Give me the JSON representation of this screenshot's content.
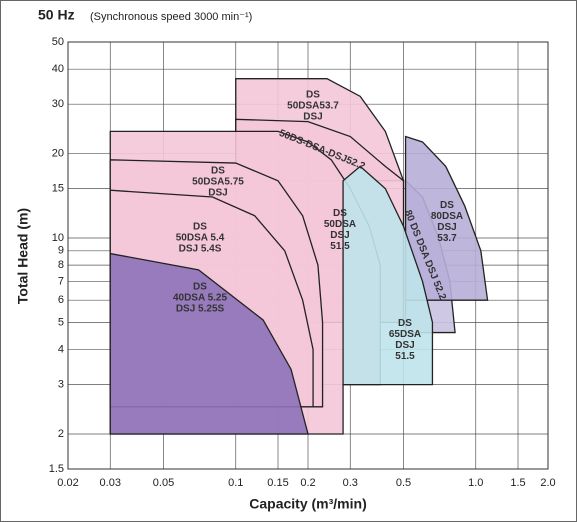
{
  "chart_data": {
    "type": "region-map",
    "title": "50 Hz",
    "subtitle": "(Synchronous speed  3000 min⁻¹)",
    "xlabel": "Capacity (m³/min)",
    "ylabel": "Total Head (m)",
    "xscale": "log",
    "yscale": "log",
    "grid": true,
    "xlim": [
      0.02,
      2.0
    ],
    "xticks": [
      0.02,
      0.03,
      0.05,
      0.1,
      0.15,
      0.2,
      0.3,
      0.5,
      {
        "value": 1.0,
        "label": "1.0"
      },
      1.5,
      {
        "value": 2.0,
        "label": "2.0"
      }
    ],
    "ylim": [
      1.5,
      50
    ],
    "yticks": [
      1.5,
      2,
      3,
      4,
      5,
      6,
      7,
      8,
      9,
      10,
      15,
      20,
      30,
      40,
      50
    ],
    "series": [
      {
        "name": [
          "DS",
          "50DSA53.7",
          "DSJ"
        ],
        "color": "#f4c6d8",
        "x": [
          0.1,
          0.1,
          0.24,
          0.33,
          0.42,
          0.5
        ],
        "values": [
          16,
          37,
          37,
          32,
          24,
          16
        ]
      },
      {
        "name": [
          "50DS-DSA-DSJ52.2"
        ],
        "color": "#f4c6d8",
        "x": [
          0.1,
          0.1,
          0.2,
          0.3,
          0.42,
          0.5,
          0.5
        ],
        "values": [
          5,
          26.5,
          26,
          23,
          18,
          16,
          5
        ]
      },
      {
        "name": [
          "80 DS DSA DSJ 52.2"
        ],
        "color": "#c9c2e2",
        "x": [
          0.51,
          0.51,
          0.6,
          0.7,
          0.78,
          0.82
        ],
        "values": [
          4.6,
          16,
          14,
          10,
          7,
          4.6
        ]
      },
      {
        "name": [
          "DS",
          "80DSA",
          "DSJ",
          "53.7"
        ],
        "color": "#b7aed7",
        "x": [
          0.51,
          0.51,
          0.6,
          0.75,
          0.9,
          1.05,
          1.12
        ],
        "values": [
          6,
          23,
          22,
          18,
          13,
          9,
          6
        ]
      },
      {
        "name": [
          "DS",
          "50DSA",
          "DSJ",
          "51.5"
        ],
        "color": "#f4c6d8",
        "x": [
          0.03,
          0.03,
          0.15,
          0.2,
          0.25,
          0.3,
          0.36,
          0.4,
          0.4,
          0.28,
          0.28
        ],
        "values": [
          2,
          24,
          24,
          22,
          19,
          15,
          11,
          8,
          3,
          3,
          2
        ]
      },
      {
        "name": [
          "DS",
          "65DSA",
          "DSJ",
          "51.5"
        ],
        "color": "#bfe3ea",
        "x": [
          0.28,
          0.28,
          0.33,
          0.42,
          0.5,
          0.6,
          0.66,
          0.66
        ],
        "values": [
          3,
          16,
          18,
          15,
          11,
          7,
          5,
          3
        ]
      },
      {
        "name": [
          "DS",
          "50DSA5.75",
          "DSJ"
        ],
        "color": "#f4c6d8",
        "x": [
          0.03,
          0.03,
          0.1,
          0.15,
          0.19,
          0.22,
          0.23,
          0.23
        ],
        "values": [
          2.5,
          19,
          18.5,
          16,
          12,
          8,
          5,
          2.5
        ]
      },
      {
        "name": [
          "DS",
          "50DSA 5.4",
          "DSJ 5.4S"
        ],
        "color": "#f4c6d8",
        "x": [
          0.03,
          0.03,
          0.08,
          0.12,
          0.16,
          0.19,
          0.21,
          0.21
        ],
        "values": [
          2.5,
          14.8,
          14,
          12,
          9,
          6,
          4,
          2.5
        ]
      },
      {
        "name": [
          "DS",
          "40DSA 5.25",
          "DSJ 5.25S"
        ],
        "color": "#8e72b8",
        "x": [
          0.03,
          0.03,
          0.07,
          0.13,
          0.17,
          0.2
        ],
        "values": [
          2,
          8.8,
          7.7,
          5.1,
          3.4,
          2
        ]
      }
    ]
  }
}
